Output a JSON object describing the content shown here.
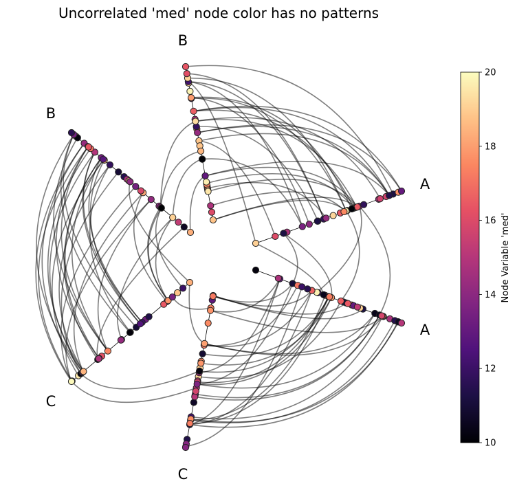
{
  "title": "Uncorrelated 'med' node color has no patterns",
  "axis_labels": {
    "a_upper": "A",
    "a_lower": "A",
    "b_upper": "B",
    "b_left": "B",
    "c_left": "C",
    "c_bottom": "C"
  },
  "colorbar": {
    "label": "Node Variable 'med'",
    "colormap": "magma",
    "min": 10,
    "max": 20,
    "ticks": [
      "10",
      "12",
      "14",
      "16",
      "18",
      "20"
    ]
  },
  "chart_data": {
    "type": "hive",
    "groups": [
      "A",
      "B",
      "C"
    ],
    "color_variable": "med",
    "color_range": [
      10,
      20
    ],
    "edge_color": "#000000",
    "edge_opacity": 0.5
  }
}
